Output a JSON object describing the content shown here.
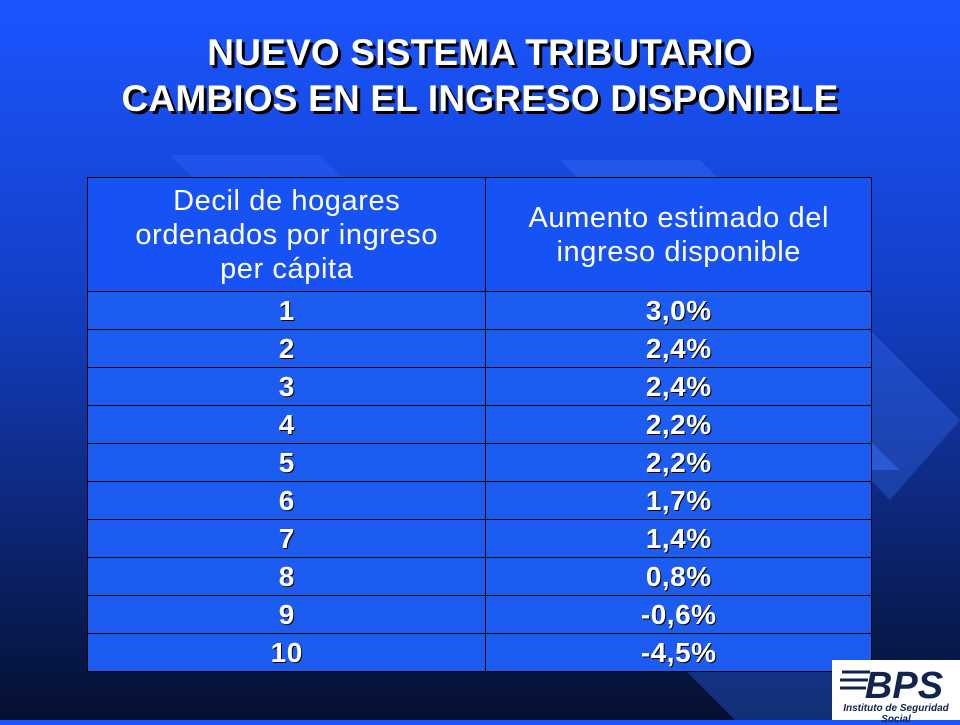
{
  "title": {
    "line1": "NUEVO SISTEMA TRIBUTARIO",
    "line2": "CAMBIOS EN EL INGRESO DISPONIBLE"
  },
  "table": {
    "headers": {
      "col1": [
        "Decil de hogares",
        "ordenados por ingreso",
        "per cápita"
      ],
      "col2": [
        "Aumento estimado del",
        "ingreso disponible"
      ]
    },
    "rows": [
      {
        "decile": "1",
        "increase": "3,0%"
      },
      {
        "decile": "2",
        "increase": "2,4%"
      },
      {
        "decile": "3",
        "increase": "2,4%"
      },
      {
        "decile": "4",
        "increase": "2,2%"
      },
      {
        "decile": "5",
        "increase": "2,2%"
      },
      {
        "decile": "6",
        "increase": "1,7%"
      },
      {
        "decile": "7",
        "increase": "1,4%"
      },
      {
        "decile": "8",
        "increase": "0,8%"
      },
      {
        "decile": "9",
        "increase": "-0,6%"
      },
      {
        "decile": "10",
        "increase": "-4,5%"
      }
    ]
  },
  "logo": {
    "mark": "BPS",
    "caption": "Instituto de Seguridad Social"
  },
  "colors": {
    "background_top": "#1a55ff",
    "background_bottom": "#04102e",
    "logo_blue": "#11244e"
  }
}
